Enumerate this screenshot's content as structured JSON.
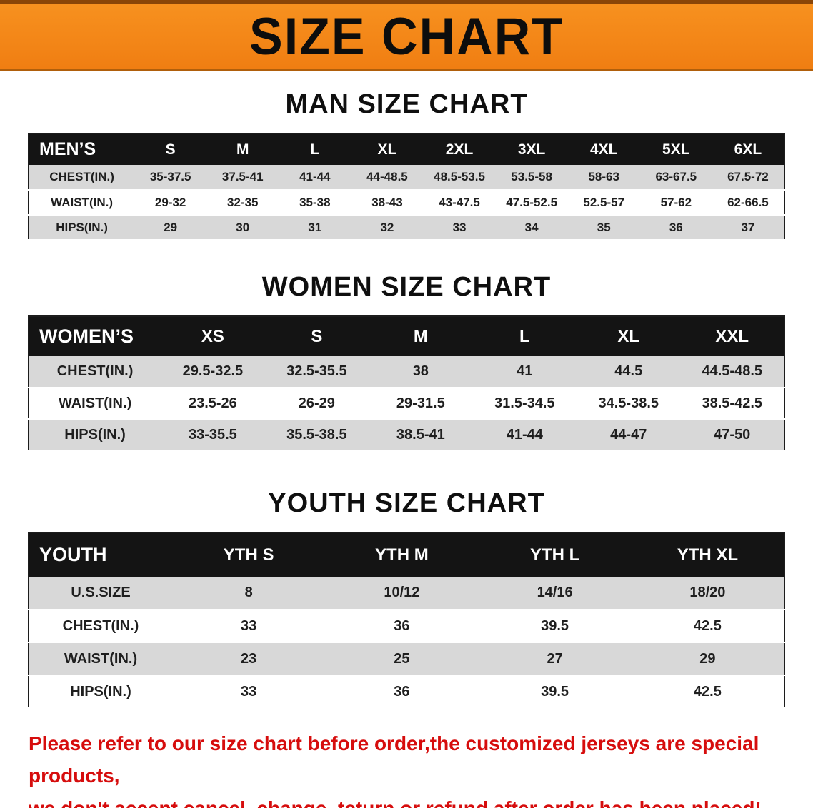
{
  "banner": {
    "title": "SIZE CHART",
    "bg_color": "#f6861d",
    "text_color": "#0d0d0d"
  },
  "sections": [
    {
      "heading": "MAN SIZE CHART",
      "table": {
        "header": [
          "MEN’S",
          "S",
          "M",
          "L",
          "XL",
          "2XL",
          "3XL",
          "4XL",
          "5XL",
          "6XL"
        ],
        "rows": [
          [
            "CHEST(IN.)",
            "35-37.5",
            "37.5-41",
            "41-44",
            "44-48.5",
            "48.5-53.5",
            "53.5-58",
            "58-63",
            "63-67.5",
            "67.5-72"
          ],
          [
            "WAIST(IN.)",
            "29-32",
            "32-35",
            "35-38",
            "38-43",
            "43-47.5",
            "47.5-52.5",
            "52.5-57",
            "57-62",
            "62-66.5"
          ],
          [
            "HIPS(IN.)",
            "29",
            "30",
            "31",
            "32",
            "33",
            "34",
            "35",
            "36",
            "37"
          ]
        ]
      }
    },
    {
      "heading": "WOMEN SIZE CHART",
      "table": {
        "header": [
          "WOMEN’S",
          "XS",
          "S",
          "M",
          "L",
          "XL",
          "XXL"
        ],
        "rows": [
          [
            "CHEST(IN.)",
            "29.5-32.5",
            "32.5-35.5",
            "38",
            "41",
            "44.5",
            "44.5-48.5"
          ],
          [
            "WAIST(IN.)",
            "23.5-26",
            "26-29",
            "29-31.5",
            "31.5-34.5",
            "34.5-38.5",
            "38.5-42.5"
          ],
          [
            "HIPS(IN.)",
            "33-35.5",
            "35.5-38.5",
            "38.5-41",
            "41-44",
            "44-47",
            "47-50"
          ]
        ]
      }
    },
    {
      "heading": "YOUTH SIZE CHART",
      "table": {
        "header": [
          "YOUTH",
          "YTH S",
          "YTH M",
          "YTH L",
          "YTH XL"
        ],
        "rows": [
          [
            "U.S.SIZE",
            "8",
            "10/12",
            "14/16",
            "18/20"
          ],
          [
            "CHEST(IN.)",
            "33",
            "36",
            "39.5",
            "42.5"
          ],
          [
            "WAIST(IN.)",
            "23",
            "25",
            "27",
            "29"
          ],
          [
            "HIPS(IN.)",
            "33",
            "36",
            "39.5",
            "42.5"
          ]
        ]
      }
    }
  ],
  "footer": {
    "text_color": "#d60d0d",
    "lines": [
      "Please refer to our size chart before order,the customized jerseys are special products,",
      "we don't accept cancel, change, teturn or refund after order has been placed!"
    ]
  }
}
